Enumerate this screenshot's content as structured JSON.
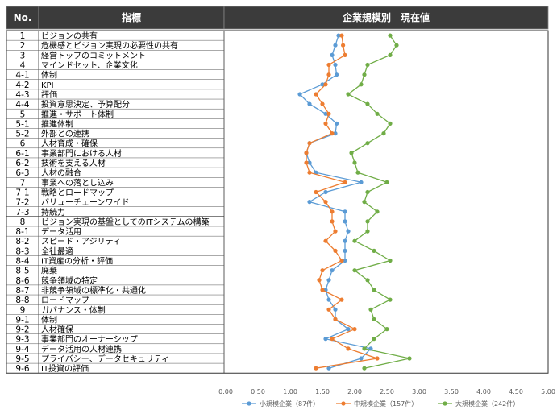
{
  "header": {
    "no_label": "No.",
    "indicator_label": "指標",
    "value_label": "企業規模別　現在値",
    "header_color": "#3b3b3b",
    "header_text_color": "#ffffff"
  },
  "chart_data": {
    "type": "line",
    "orientation": "horizontal",
    "xlim": [
      0,
      5
    ],
    "x_ticks": [
      "0.00",
      "0.50",
      "1.00",
      "1.50",
      "2.00",
      "2.50",
      "3.00",
      "3.50",
      "4.00",
      "4.50",
      "5.00"
    ],
    "rows": [
      {
        "no": "1",
        "label": "ビジョンの共有"
      },
      {
        "no": "2",
        "label": "危機感とビジョン実現の必要性の共有"
      },
      {
        "no": "3",
        "label": "経営トップのコミットメント"
      },
      {
        "no": "4",
        "label": "マインドセット、企業文化"
      },
      {
        "no": "4-1",
        "label": "体制"
      },
      {
        "no": "4-2",
        "label": "KPI"
      },
      {
        "no": "4-3",
        "label": "評価"
      },
      {
        "no": "4-4",
        "label": "投資意思決定、予算配分"
      },
      {
        "no": "5",
        "label": "推進・サポート体制"
      },
      {
        "no": "5-1",
        "label": "推進体制"
      },
      {
        "no": "5-2",
        "label": "外部との連携"
      },
      {
        "no": "6",
        "label": "人材育成・確保"
      },
      {
        "no": "6-1",
        "label": "事業部門における人材"
      },
      {
        "no": "6-2",
        "label": "技術を支える人材"
      },
      {
        "no": "6-3",
        "label": "人材の融合"
      },
      {
        "no": "7",
        "label": "事業への落とし込み"
      },
      {
        "no": "7-1",
        "label": "戦略とロードマップ"
      },
      {
        "no": "7-2",
        "label": "バリューチェーンワイド"
      },
      {
        "no": "7-3",
        "label": "持続力"
      },
      {
        "no": "8",
        "label": "ビジョン実現の基盤としてのITシステムの構築"
      },
      {
        "no": "8-1",
        "label": "データ活用"
      },
      {
        "no": "8-2",
        "label": "スピード・アジリティ"
      },
      {
        "no": "8-3",
        "label": "全社最適"
      },
      {
        "no": "8-4",
        "label": "IT資産の分析・評価"
      },
      {
        "no": "8-5",
        "label": "廃棄"
      },
      {
        "no": "8-6",
        "label": "競争領域の特定"
      },
      {
        "no": "8-7",
        "label": "非競争領域の標準化・共通化"
      },
      {
        "no": "8-8",
        "label": "ロードマップ"
      },
      {
        "no": "9",
        "label": "ガバナンス・体制"
      },
      {
        "no": "9-1",
        "label": "体制"
      },
      {
        "no": "9-2",
        "label": "人材確保"
      },
      {
        "no": "9-3",
        "label": "事業部門のオーナーシップ"
      },
      {
        "no": "9-4",
        "label": "データ活用の人材連携"
      },
      {
        "no": "9-5",
        "label": "プライバシー、データセキュリティ"
      },
      {
        "no": "9-6",
        "label": "IT投資の評価"
      }
    ],
    "series": [
      {
        "name": "小規模企業（87件）",
        "color": "#5b9bd5",
        "values": [
          1.75,
          1.7,
          1.65,
          1.7,
          1.72,
          1.5,
          1.15,
          1.3,
          1.55,
          1.72,
          1.7,
          1.3,
          1.25,
          1.3,
          1.4,
          2.1,
          1.55,
          1.3,
          1.85,
          1.85,
          1.9,
          1.85,
          1.85,
          1.85,
          1.65,
          1.6,
          1.55,
          1.6,
          1.7,
          1.7,
          1.9,
          1.55,
          2.25,
          2.1,
          1.6
        ]
      },
      {
        "name": "中規模企業（157件）",
        "color": "#ed7d31",
        "values": [
          1.8,
          1.82,
          1.85,
          1.6,
          1.6,
          1.55,
          1.4,
          1.5,
          1.6,
          1.55,
          1.65,
          1.3,
          1.25,
          1.25,
          1.3,
          1.85,
          1.4,
          1.55,
          1.65,
          1.65,
          1.7,
          1.55,
          1.7,
          1.8,
          1.5,
          1.45,
          1.5,
          1.8,
          1.6,
          1.7,
          2.0,
          1.65,
          1.9,
          2.35,
          1.4
        ]
      },
      {
        "name": "大規模企業（242件）",
        "color": "#70ad47",
        "values": [
          2.55,
          2.65,
          2.55,
          2.2,
          2.15,
          2.1,
          1.9,
          2.2,
          2.35,
          2.55,
          2.45,
          2.2,
          1.95,
          2.0,
          2.05,
          2.5,
          2.2,
          2.15,
          2.35,
          2.2,
          2.2,
          2.0,
          2.3,
          2.55,
          2.0,
          2.2,
          2.3,
          2.55,
          2.25,
          2.3,
          2.5,
          2.3,
          2.15,
          2.85,
          2.15
        ]
      }
    ]
  }
}
